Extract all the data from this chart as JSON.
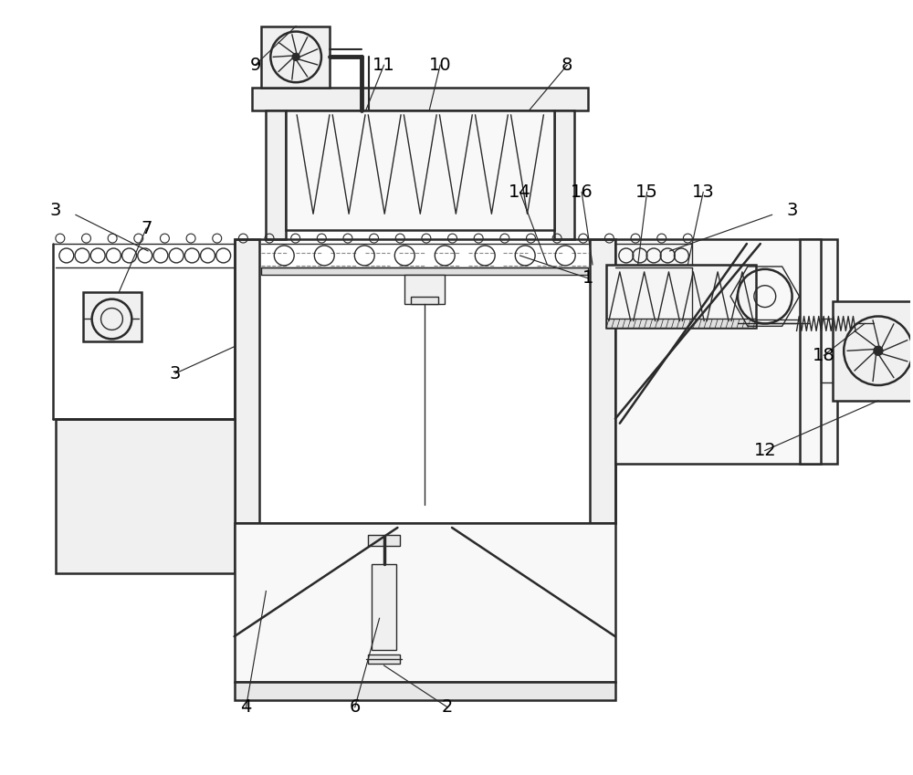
{
  "bg_color": "#ffffff",
  "line_color": "#2a2a2a",
  "lw_main": 1.8,
  "lw_thin": 1.0,
  "lw_label": 0.9,
  "figsize": [
    10.0,
    8.49
  ],
  "dpi": 100
}
